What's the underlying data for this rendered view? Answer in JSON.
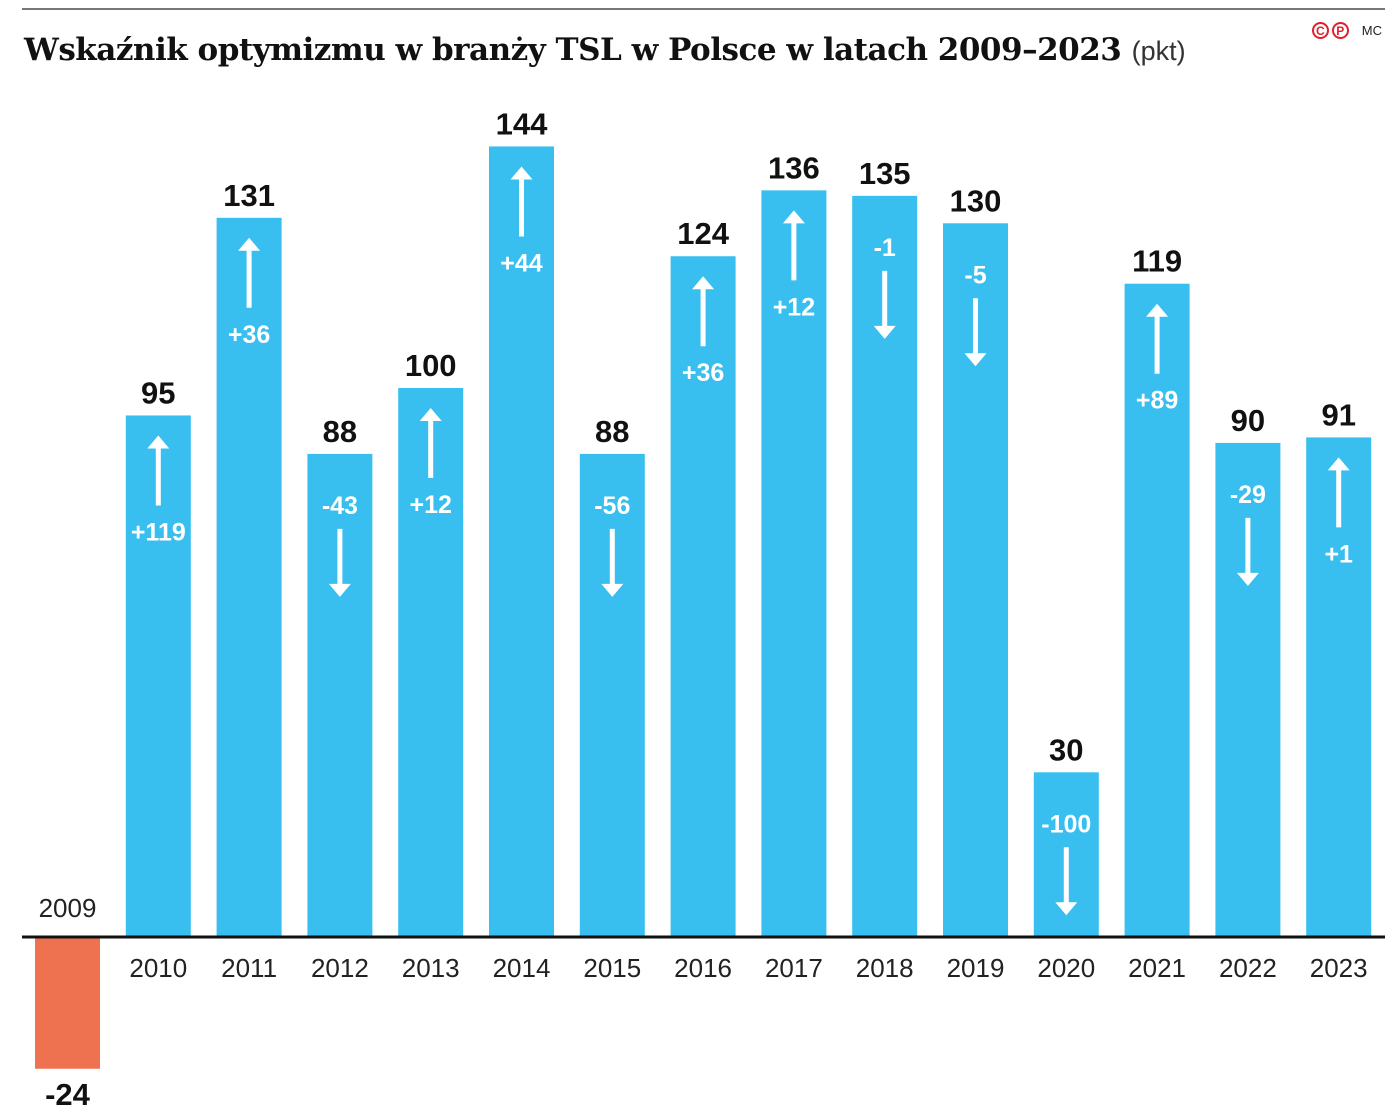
{
  "title": "Wskaźnik optymizmu w branży TSL w Polsce w latach 2009–2023",
  "unit": "(pkt)",
  "logo": {
    "text": "©℗",
    "author": "MC"
  },
  "colors": {
    "positive": "#38bff0",
    "negative": "#ee7150",
    "axis": "#111111"
  },
  "chart_data": {
    "type": "bar",
    "title": "Wskaźnik optymizmu w branży TSL w Polsce w latach 2009–2023",
    "ylabel": "(pkt)",
    "categories": [
      "2009",
      "2010",
      "2011",
      "2012",
      "2013",
      "2014",
      "2015",
      "2016",
      "2017",
      "2018",
      "2019",
      "2020",
      "2021",
      "2022",
      "2023"
    ],
    "values": [
      -24,
      95,
      131,
      88,
      100,
      144,
      88,
      124,
      136,
      135,
      130,
      30,
      119,
      90,
      91
    ],
    "value_labels": [
      "-24",
      "95",
      "131",
      "88",
      "100",
      "144",
      "88",
      "124",
      "136",
      "135",
      "130",
      "30",
      "119",
      "90",
      "91"
    ],
    "change_labels": [
      "",
      "+119",
      "+36",
      "-43",
      "+12",
      "+44",
      "-56",
      "+36",
      "+12",
      "-1",
      "-5",
      "-100",
      "+89",
      "-29",
      "+1"
    ],
    "grid": false,
    "legend": "none"
  }
}
